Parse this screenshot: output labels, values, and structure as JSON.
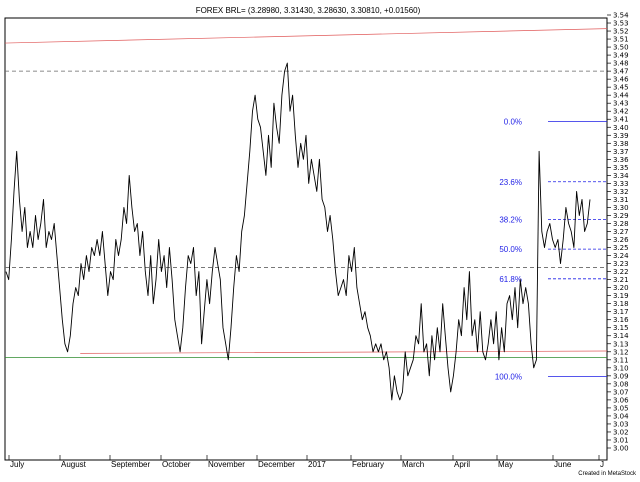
{
  "chart_data": {
    "type": "line",
    "title": "FOREX BRL= (3.28980, 3.31430, 3.28630, 3.30810, +0.01560)",
    "credit": "Created in MetaStock",
    "ylim": [
      3.0,
      3.54
    ],
    "ytick_start": 3.0,
    "ytick_end": 3.54,
    "ytick_step": 0.01,
    "months": [
      "July",
      "August",
      "September",
      "October",
      "November",
      "December",
      "2017",
      "February",
      "March",
      "April",
      "May",
      "June",
      "J"
    ],
    "line_color": "#000000",
    "horizontal_levels": [
      {
        "value": 3.47,
        "style": "dashed",
        "color": "#666666"
      },
      {
        "value": 3.225,
        "style": "dashed",
        "color": "#666666"
      },
      {
        "value": 3.113,
        "style": "solid",
        "color": "#2e8b2e"
      }
    ],
    "trendlines": [
      {
        "from": [
          0,
          3.505
        ],
        "to": [
          1,
          3.523
        ],
        "color": "#e05a5a"
      },
      {
        "from": [
          0.125,
          3.118
        ],
        "to": [
          1,
          3.121
        ],
        "color": "#e05a5a"
      }
    ],
    "fibonacci": [
      {
        "label": "0.0%",
        "value": 3.407
      },
      {
        "label": "23.6%",
        "value": 3.332
      },
      {
        "label": "38.2%",
        "value": 3.285
      },
      {
        "label": "50.0%",
        "value": 3.248
      },
      {
        "label": "61.8%",
        "value": 3.211
      },
      {
        "label": "100.0%",
        "value": 3.089
      }
    ],
    "fib_color": "#1e1ee6",
    "series": [
      {
        "values": [
          3.22,
          3.21,
          3.26,
          3.32,
          3.37,
          3.31,
          3.27,
          3.3,
          3.25,
          3.27,
          3.25,
          3.29,
          3.26,
          3.28,
          3.31,
          3.25,
          3.27,
          3.26,
          3.28,
          3.24,
          3.2,
          3.16,
          3.13,
          3.12,
          3.14,
          3.18,
          3.2,
          3.19,
          3.23,
          3.21,
          3.24,
          3.22,
          3.25,
          3.24,
          3.26,
          3.24,
          3.27,
          3.23,
          3.19,
          3.22,
          3.21,
          3.26,
          3.24,
          3.26,
          3.3,
          3.28,
          3.34,
          3.3,
          3.27,
          3.28,
          3.24,
          3.27,
          3.22,
          3.19,
          3.24,
          3.18,
          3.21,
          3.26,
          3.22,
          3.24,
          3.2,
          3.25,
          3.21,
          3.16,
          3.14,
          3.12,
          3.15,
          3.2,
          3.24,
          3.23,
          3.25,
          3.19,
          3.22,
          3.13,
          3.17,
          3.21,
          3.18,
          3.22,
          3.25,
          3.23,
          3.21,
          3.15,
          3.13,
          3.11,
          3.15,
          3.2,
          3.24,
          3.22,
          3.27,
          3.29,
          3.33,
          3.37,
          3.42,
          3.44,
          3.41,
          3.4,
          3.37,
          3.34,
          3.39,
          3.35,
          3.43,
          3.4,
          3.38,
          3.44,
          3.47,
          3.48,
          3.42,
          3.44,
          3.39,
          3.35,
          3.38,
          3.36,
          3.39,
          3.33,
          3.36,
          3.34,
          3.32,
          3.36,
          3.31,
          3.3,
          3.27,
          3.29,
          3.26,
          3.22,
          3.19,
          3.2,
          3.21,
          3.19,
          3.24,
          3.22,
          3.25,
          3.2,
          3.18,
          3.16,
          3.17,
          3.15,
          3.14,
          3.12,
          3.13,
          3.12,
          3.13,
          3.11,
          3.12,
          3.1,
          3.06,
          3.09,
          3.07,
          3.06,
          3.07,
          3.12,
          3.09,
          3.1,
          3.11,
          3.14,
          3.13,
          3.18,
          3.12,
          3.13,
          3.09,
          3.14,
          3.11,
          3.15,
          3.12,
          3.18,
          3.14,
          3.1,
          3.07,
          3.09,
          3.12,
          3.16,
          3.14,
          3.2,
          3.16,
          3.22,
          3.14,
          3.16,
          3.12,
          3.17,
          3.12,
          3.11,
          3.13,
          3.16,
          3.13,
          3.17,
          3.11,
          3.15,
          3.12,
          3.18,
          3.19,
          3.16,
          3.2,
          3.15,
          3.21,
          3.18,
          3.2,
          3.18,
          3.13,
          3.1,
          3.11,
          3.37,
          3.27,
          3.25,
          3.27,
          3.28,
          3.26,
          3.25,
          3.26,
          3.23,
          3.26,
          3.3,
          3.28,
          3.27,
          3.25,
          3.32,
          3.29,
          3.31,
          3.27,
          3.28,
          3.31
        ]
      }
    ],
    "grid": false
  }
}
